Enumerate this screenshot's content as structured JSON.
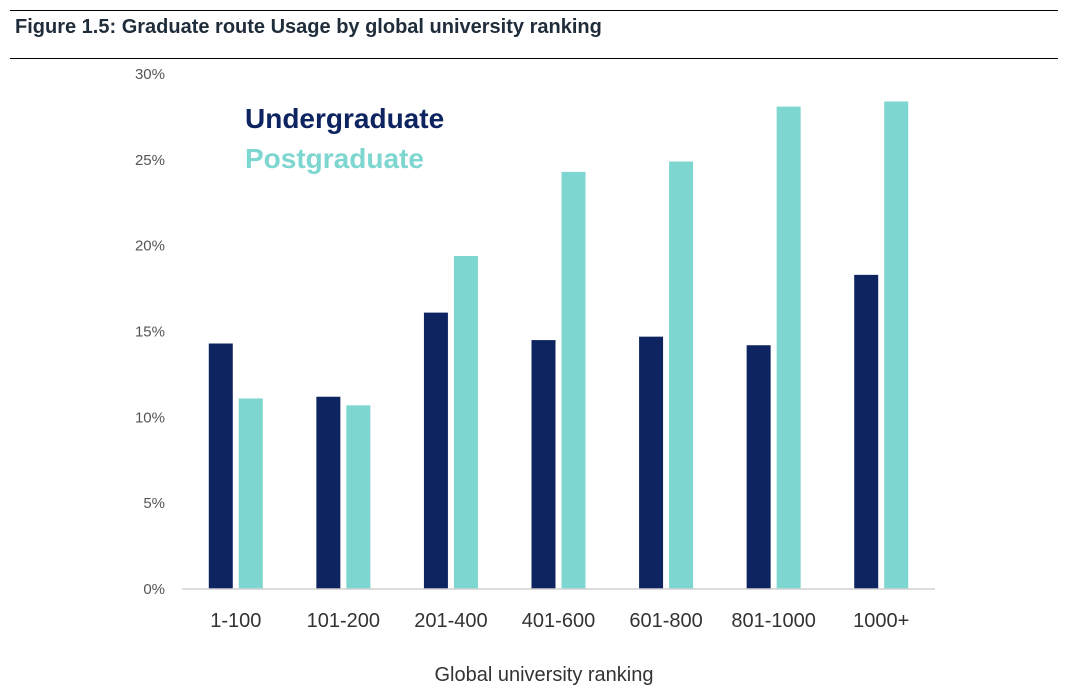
{
  "figure": {
    "title": "Figure 1.5: Graduate route Usage by global university ranking"
  },
  "colors": {
    "undergraduate": "#0e2461",
    "postgraduate": "#7dd6cf"
  },
  "chart_data": {
    "type": "bar",
    "categories": [
      "1-100",
      "101-200",
      "201-400",
      "401-600",
      "601-800",
      "801-1000",
      "1000+"
    ],
    "series": [
      {
        "name": "Undergraduate",
        "values": [
          14.3,
          11.2,
          16.1,
          14.5,
          14.7,
          14.2,
          18.3
        ]
      },
      {
        "name": "Postgraduate",
        "values": [
          11.1,
          10.7,
          19.4,
          24.3,
          24.9,
          28.1,
          28.4
        ]
      }
    ],
    "xlabel": "Global university ranking",
    "ylabel": "",
    "ylim": [
      0,
      30
    ],
    "yticks": [
      "0%",
      "5%",
      "10%",
      "15%",
      "20%",
      "25%",
      "30%"
    ],
    "grid": false,
    "legend_placement": "top-left"
  }
}
